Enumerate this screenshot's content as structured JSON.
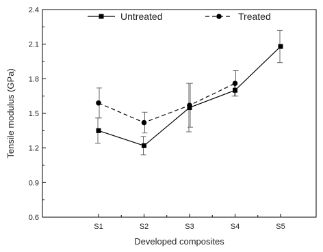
{
  "chart_data": {
    "type": "line",
    "title": "",
    "xlabel": "Developed composites",
    "ylabel": "Tensile modulus (GPa)",
    "categories": [
      "S1",
      "S2",
      "S3",
      "S4",
      "S5"
    ],
    "ylim": [
      0.6,
      2.4
    ],
    "yticks": [
      "0.6",
      "0.9",
      "1.2",
      "1.5",
      "1.8",
      "2.1",
      "2.4"
    ],
    "grid": false,
    "legend_position": "top",
    "series": [
      {
        "name": "Untreated",
        "line_style": "solid",
        "marker": "square",
        "values": [
          1.35,
          1.22,
          1.55,
          1.7,
          2.08
        ],
        "errors": [
          0.11,
          0.08,
          0.21,
          0.05,
          0.14
        ],
        "color": "#000000"
      },
      {
        "name": "Treated",
        "line_style": "dashed",
        "marker": "circle",
        "values": [
          1.59,
          1.42,
          1.57,
          1.76,
          null
        ],
        "errors": [
          0.13,
          0.09,
          0.19,
          0.11,
          null
        ],
        "color": "#000000"
      }
    ]
  }
}
